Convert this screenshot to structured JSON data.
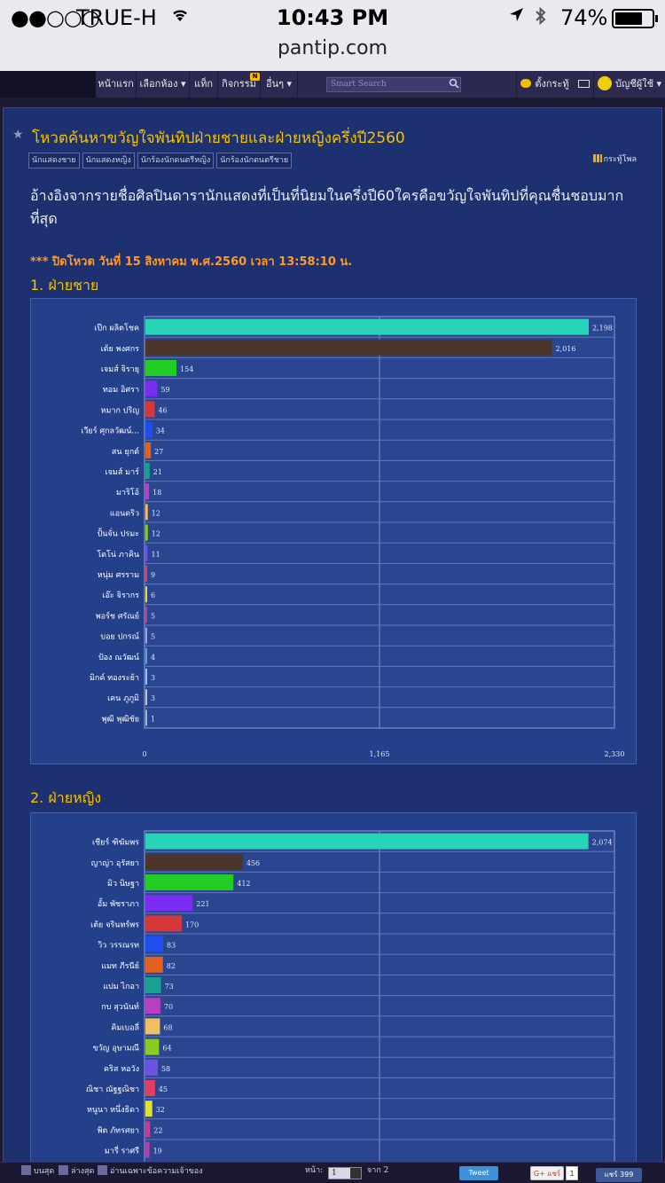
{
  "ios": {
    "signal": "●●○○○",
    "carrier": "TRUE-H",
    "time": "10:43 PM",
    "battery": "74%",
    "url": "pantip.com"
  },
  "nav": {
    "items": [
      "หน้าแรก",
      "เลือกห้อง ▾",
      "แท็ก",
      "กิจกรรม",
      "อื่นๆ ▾"
    ],
    "badge": "N",
    "search_placeholder": "Smart Search",
    "create_topic": "ตั้งกระทู้",
    "account": "บัญชีผู้ใช้ ▾"
  },
  "topic": {
    "title": "โหวตค้นหาขวัญใจพันทิปฝ่ายชายและฝ่ายหญิงครึ่งปี2560",
    "tags": [
      "นักแสดงชาย",
      "นักแสดงหญิง",
      "นักร้องนักดนตรีหญิง",
      "นักร้องนักดนตรีชาย"
    ],
    "poll_link": "กระทู้โพล",
    "description": "อ้างอิงจากรายชื่อศิลปินดารานักแสดงที่เป็นที่นิยมในครึ่งปี60ใครคือขวัญใจพันทิปที่คุณชื่นชอบมากที่สุด",
    "closed_note": "*** ปิดโหวต วันที่ 15 สิงหาคม พ.ศ.2560 เวลา 13:58:10 น.",
    "section1": "1. ฝ่ายชาย",
    "section2": "2. ฝ่ายหญิง"
  },
  "chart_data": [
    {
      "type": "bar",
      "orientation": "horizontal",
      "categories": [
        "เป๊ก ผลิตโชค",
        "เต้ย พงศกร",
        "เจมส์ จิรายุ",
        "ทอม อิศรา",
        "หมาก ปริญ",
        "เวียร์ ศุกลวัฒน์...",
        "สน ยุกต์",
        "เจมส์ มาร์",
        "มาริโอ้",
        "แอนดริว",
        "ปั้นจั่น ปรมะ",
        "โตโน่ ภาคิน",
        "หนุ่ม ศรราม",
        "เอ๊ะ จิรากร",
        "พอร์ช ศรัณย์",
        "บอย ปกรณ์",
        "ป้อง ณวัฒน์",
        "มิกค์ ทองระย้า",
        "เคน ภูภูมิ",
        "พุฒิ พุฒิชัย"
      ],
      "values": [
        2198,
        2016,
        154,
        59,
        46,
        34,
        27,
        21,
        18,
        12,
        12,
        11,
        9,
        6,
        5,
        5,
        4,
        3,
        3,
        1
      ],
      "value_labels": [
        "2,198",
        "2,016",
        "154",
        "59",
        "46",
        "34",
        "27",
        "21",
        "18",
        "12",
        "12",
        "11",
        "9",
        "6",
        "5",
        "5",
        "4",
        "3",
        "3",
        "1"
      ],
      "colors": [
        "#26d4b8",
        "#4a3528",
        "#22cc22",
        "#7a2cf0",
        "#d43838",
        "#1e4ef0",
        "#e06020",
        "#1aa090",
        "#b840c0",
        "#f0c060",
        "#8acc20",
        "#7050e0",
        "#e04060",
        "#e0e030",
        "#c04090",
        "#a0a0e0",
        "#60a0d0",
        "#90c0ff",
        "#c0c0c0",
        "#a0b0d0"
      ],
      "xlim": [
        0,
        2330
      ],
      "tick_labels": [
        "0",
        "1,165",
        "2,330"
      ],
      "grid": true
    },
    {
      "type": "bar",
      "orientation": "horizontal",
      "categories": [
        "เชียร์ ฑิฆัมพร",
        "ญาญ่า อุรัสยา",
        "มิว นิษฐา",
        "อั้ม พัชราภา",
        "เต้ย จรินทร์พร",
        "วิว วรรณรท",
        "แมท ภีรนีย์",
        "แปม ไกอา",
        "กบ สุวนันท์",
        "คิมเบอลี่",
        "ขวัญ อุษามณี",
        "คริส หอวัง",
        "ณิชา ณัฐฐณิชา",
        "หนูนา หนึ่งธิดา",
        "พิต ภัทรศยา",
        "มารี่ ราศรี"
      ],
      "values": [
        2074,
        456,
        412,
        221,
        170,
        83,
        82,
        73,
        70,
        68,
        64,
        58,
        45,
        32,
        22,
        19
      ],
      "value_labels": [
        "2,074",
        "456",
        "412",
        "221",
        "170",
        "83",
        "82",
        "73",
        "70",
        "68",
        "64",
        "58",
        "45",
        "32",
        "22",
        "19"
      ],
      "colors": [
        "#26d4b8",
        "#4a3528",
        "#22cc22",
        "#7a2cf0",
        "#d43838",
        "#1e4ef0",
        "#e06020",
        "#1aa090",
        "#b840c0",
        "#f0c060",
        "#8acc20",
        "#7050e0",
        "#e04060",
        "#e0e030",
        "#c04090",
        "#b040b0"
      ],
      "xlim": [
        0,
        2200
      ],
      "grid": true
    }
  ],
  "bottom": {
    "to_top": "บนสุด",
    "to_bottom": "ล่างสุด",
    "owner_only": "อ่านเฉพาะข้อความเจ้าของ",
    "page_label": "หน้า:",
    "page_value": "1",
    "page_of": "จาก 2",
    "tweet": "Tweet",
    "gplus": "แชร์",
    "gplus_count": "1",
    "fb": "แชร์ 399"
  }
}
